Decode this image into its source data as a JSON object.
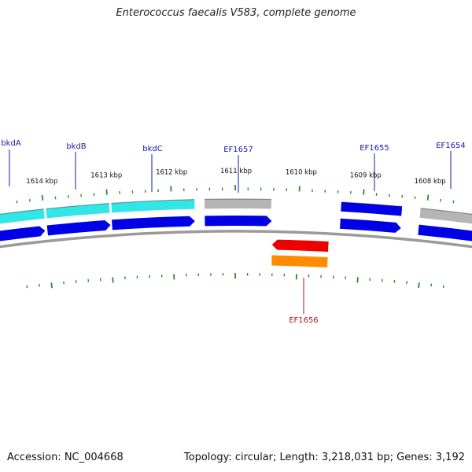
{
  "title": "Enterococcus faecalis V583, complete genome",
  "footer": {
    "accession": "Accession: NC_004668",
    "summary": "Topology: circular; Length: 3,218,031 bp; Genes: 3,192"
  },
  "colors": {
    "backbone": "#9a9a9a",
    "tick": "#2e8b2e",
    "label_forward": "#1a1aa6",
    "label_reverse": "#b01515",
    "cds_forward": "#0000e6",
    "cyan_feature": "#33e6e6",
    "gray_feature": "#b5b5b5",
    "red_feature": "#ee0000",
    "orange_feature": "#ff8c00"
  },
  "axis": {
    "unit": "kbp",
    "ticks": [
      {
        "label": "1614 kbp"
      },
      {
        "label": "1613 kbp"
      },
      {
        "label": "1612 kbp"
      },
      {
        "label": "1611 kbp"
      },
      {
        "label": "1610 kbp"
      },
      {
        "label": "1609 kbp"
      },
      {
        "label": "1608 kbp"
      }
    ]
  },
  "genes": [
    {
      "name": "bkdA",
      "strand": "forward"
    },
    {
      "name": "bkdB",
      "strand": "forward"
    },
    {
      "name": "bkdC",
      "strand": "forward"
    },
    {
      "name": "EF1657",
      "strand": "forward"
    },
    {
      "name": "EF1655",
      "strand": "forward"
    },
    {
      "name": "EF1654",
      "strand": "forward"
    },
    {
      "name": "EF1656",
      "strand": "reverse"
    }
  ]
}
